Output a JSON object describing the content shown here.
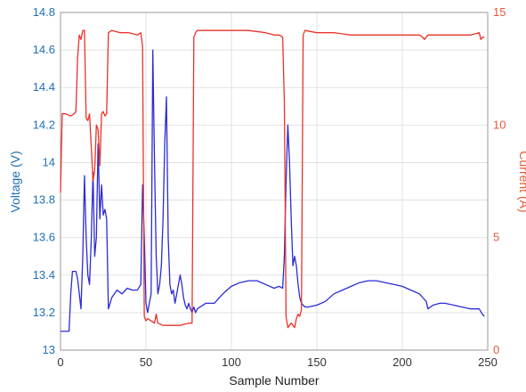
{
  "chart_data": {
    "type": "line",
    "xlabel": "Sample Number",
    "ylabel_left": "Voltage (V)",
    "ylabel_right": "Current (A)",
    "xlim": [
      0,
      250
    ],
    "ylim_left": [
      13.0,
      14.8
    ],
    "ylim_right": [
      0,
      15
    ],
    "xticks": [
      0,
      50,
      100,
      150,
      200,
      250
    ],
    "yticks_left": [
      13,
      13.2,
      13.4,
      13.6,
      13.8,
      14,
      14.2,
      14.4,
      14.6,
      14.8
    ],
    "yticks_right": [
      0,
      5,
      10,
      15
    ],
    "grid": true,
    "colors": {
      "voltage": "#2b2bd6",
      "current": "#e8332a",
      "left_axis": "#1f6fb5",
      "right_axis": "#e05a3a"
    },
    "series": [
      {
        "axis": "left",
        "color": "#2b2bd6",
        "x": [
          0,
          5,
          6,
          7,
          9,
          10,
          11,
          12,
          13,
          14,
          15,
          16,
          17,
          18,
          19,
          20,
          21,
          22,
          23,
          24,
          25,
          26,
          27,
          28,
          29,
          30,
          33,
          36,
          39,
          42,
          45,
          47,
          48,
          49,
          50,
          51,
          52,
          53,
          54,
          55,
          56,
          57,
          58,
          59,
          60,
          61,
          62,
          63,
          64,
          65,
          66,
          67,
          68,
          69,
          70,
          71,
          72,
          73,
          74,
          75,
          76,
          77,
          78,
          79,
          80,
          85,
          90,
          95,
          100,
          105,
          110,
          115,
          120,
          125,
          128,
          130,
          131,
          132,
          133,
          134,
          135,
          136,
          137,
          138,
          139,
          140,
          141,
          142,
          143,
          145,
          150,
          155,
          160,
          165,
          170,
          175,
          180,
          185,
          190,
          195,
          200,
          205,
          210,
          212,
          214,
          215,
          218,
          222,
          225,
          230,
          235,
          240,
          245,
          247,
          248
        ],
        "values": [
          13.1,
          13.1,
          13.3,
          13.42,
          13.42,
          13.38,
          13.3,
          13.22,
          13.5,
          13.93,
          13.6,
          13.4,
          13.35,
          13.6,
          13.95,
          13.5,
          13.6,
          14.1,
          13.7,
          13.88,
          13.72,
          13.75,
          13.7,
          13.22,
          13.25,
          13.28,
          13.32,
          13.3,
          13.33,
          13.32,
          13.32,
          13.35,
          13.88,
          13.6,
          13.25,
          13.2,
          13.25,
          13.3,
          14.6,
          14.0,
          13.5,
          13.3,
          13.35,
          13.45,
          13.7,
          14.1,
          14.35,
          13.6,
          13.35,
          13.3,
          13.32,
          13.25,
          13.3,
          13.35,
          13.4,
          13.35,
          13.28,
          13.24,
          13.22,
          13.25,
          13.22,
          13.2,
          13.23,
          13.2,
          13.22,
          13.25,
          13.25,
          13.3,
          13.34,
          13.36,
          13.37,
          13.37,
          13.35,
          13.33,
          13.34,
          13.33,
          13.5,
          13.9,
          14.2,
          14.0,
          13.7,
          13.45,
          13.5,
          13.45,
          13.35,
          13.28,
          13.25,
          13.24,
          13.23,
          13.23,
          13.24,
          13.26,
          13.3,
          13.32,
          13.34,
          13.36,
          13.37,
          13.37,
          13.36,
          13.35,
          13.34,
          13.32,
          13.3,
          13.28,
          13.26,
          13.22,
          13.24,
          13.25,
          13.25,
          13.24,
          13.23,
          13.22,
          13.22,
          13.19,
          13.18
        ]
      },
      {
        "axis": "right",
        "color": "#e8332a",
        "x": [
          0,
          1,
          3,
          6,
          8,
          9,
          10,
          11,
          12,
          13,
          14,
          15,
          16,
          17,
          18,
          19,
          20,
          21,
          22,
          23,
          24,
          25,
          26,
          27,
          28,
          30,
          35,
          40,
          45,
          47,
          48,
          49,
          50,
          51,
          53,
          55,
          56,
          57,
          60,
          65,
          70,
          75,
          77,
          78,
          79,
          80,
          90,
          100,
          110,
          120,
          125,
          128,
          130,
          131,
          132,
          133,
          134,
          135,
          137,
          138,
          139,
          140,
          141,
          142,
          143,
          150,
          160,
          170,
          180,
          190,
          200,
          210,
          212,
          213,
          215,
          220,
          230,
          240,
          245,
          246,
          247,
          248
        ],
        "values": [
          7.0,
          10.5,
          10.5,
          10.4,
          10.5,
          10.6,
          13.0,
          14.0,
          13.8,
          14.2,
          14.2,
          10.3,
          10.2,
          10.5,
          9.0,
          7.5,
          8.0,
          10.0,
          9.8,
          8.2,
          10.5,
          10.6,
          10.4,
          10.5,
          14.1,
          14.2,
          14.1,
          14.1,
          14.0,
          14.1,
          13.5,
          1.5,
          1.3,
          1.4,
          1.3,
          1.2,
          1.6,
          1.2,
          1.1,
          1.1,
          1.1,
          1.2,
          1.2,
          13.9,
          14.1,
          14.2,
          14.2,
          14.2,
          14.2,
          14.1,
          14.0,
          14.0,
          13.9,
          11.0,
          1.5,
          1.0,
          1.1,
          1.2,
          1.0,
          1.4,
          1.6,
          1.5,
          1.8,
          14.0,
          14.2,
          14.1,
          14.1,
          14.0,
          14.0,
          14.0,
          14.0,
          14.0,
          13.9,
          13.8,
          14.0,
          14.0,
          14.0,
          14.0,
          14.1,
          13.8,
          13.9,
          13.9
        ]
      }
    ]
  }
}
